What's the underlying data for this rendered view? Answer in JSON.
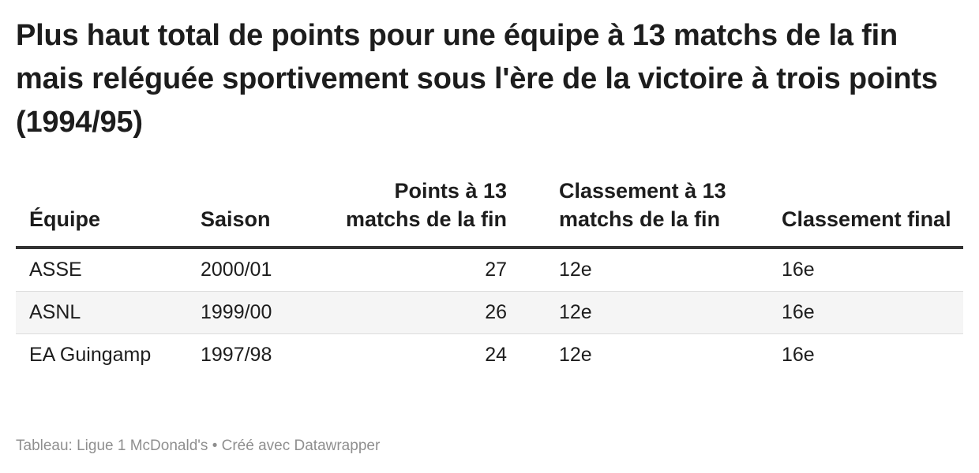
{
  "title": "Plus haut total de points pour une équipe à 13 matchs de la fin mais reléguée sportivement sous l'ère de la victoire à trois points (1994/95)",
  "table": {
    "headers": {
      "equipe": "Équipe",
      "saison": "Saison",
      "points": "Points à 13 matchs de la fin",
      "classement13": "Classement à 13 matchs de la fin",
      "final": "Classement final"
    },
    "rows": [
      {
        "equipe": "ASSE",
        "saison": "2000/01",
        "points": "27",
        "classement13": "12e",
        "final": "16e"
      },
      {
        "equipe": "ASNL",
        "saison": "1999/00",
        "points": "26",
        "classement13": "12e",
        "final": "16e"
      },
      {
        "equipe": "EA Guingamp",
        "saison": "1997/98",
        "points": "24",
        "classement13": "12e",
        "final": "16e"
      }
    ]
  },
  "footer": {
    "source_label": "Tableau: Ligue 1 McDonald's",
    "separator": "•",
    "credit": "Créé avec Datawrapper"
  },
  "colors": {
    "text": "#1d1d1d",
    "header_rule": "#333333",
    "row_divider": "#dcdcdc",
    "row_stripe": "#f5f5f5",
    "footer_text": "#8f8f8f"
  }
}
